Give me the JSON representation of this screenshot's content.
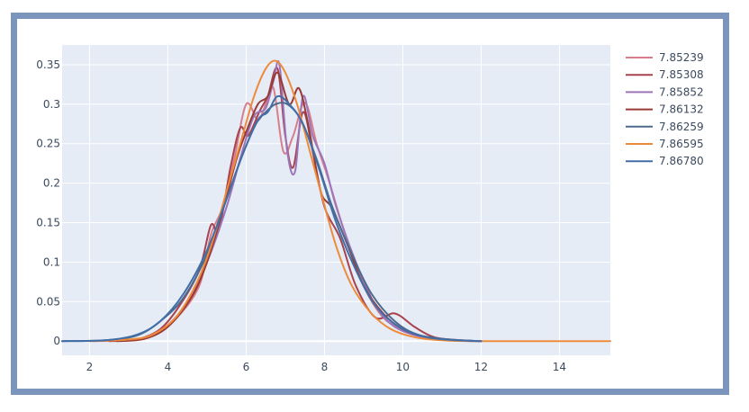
{
  "chart_data": {
    "type": "line",
    "title": "",
    "xlabel": "",
    "ylabel": "",
    "xlim": [
      1.3,
      15.3
    ],
    "ylim": [
      -0.018,
      0.375
    ],
    "xticks": [
      2,
      4,
      6,
      8,
      10,
      12,
      14
    ],
    "yticks": [
      0,
      0.05,
      0.1,
      0.15,
      0.2,
      0.25,
      0.3,
      0.35
    ],
    "ytick_labels": [
      "0",
      "0.05",
      "0.1",
      "0.15",
      "0.2",
      "0.25",
      "0.3",
      "0.35"
    ],
    "grid": true,
    "legend_position": "right",
    "series": [
      {
        "name": "7.85239",
        "color": "#d77e8d",
        "points": [
          [
            2.1,
            0
          ],
          [
            3.0,
            0.001
          ],
          [
            3.6,
            0.006
          ],
          [
            4.2,
            0.028
          ],
          [
            4.8,
            0.07
          ],
          [
            5.1,
            0.135
          ],
          [
            5.4,
            0.17
          ],
          [
            5.7,
            0.232
          ],
          [
            6.0,
            0.3
          ],
          [
            6.3,
            0.28
          ],
          [
            6.5,
            0.3
          ],
          [
            6.7,
            0.32
          ],
          [
            6.95,
            0.24
          ],
          [
            7.2,
            0.26
          ],
          [
            7.5,
            0.302
          ],
          [
            7.8,
            0.25
          ],
          [
            8.1,
            0.205
          ],
          [
            8.5,
            0.14
          ],
          [
            9.0,
            0.07
          ],
          [
            9.5,
            0.03
          ],
          [
            10.0,
            0.015
          ],
          [
            10.5,
            0.005
          ],
          [
            11.2,
            0.001
          ],
          [
            12.0,
            0
          ]
        ]
      },
      {
        "name": "7.85308",
        "color": "#a8424f",
        "points": [
          [
            2.5,
            0
          ],
          [
            3.2,
            0.002
          ],
          [
            3.8,
            0.015
          ],
          [
            4.3,
            0.045
          ],
          [
            4.8,
            0.09
          ],
          [
            5.1,
            0.147
          ],
          [
            5.3,
            0.14
          ],
          [
            5.6,
            0.22
          ],
          [
            5.85,
            0.27
          ],
          [
            6.05,
            0.26
          ],
          [
            6.35,
            0.292
          ],
          [
            6.55,
            0.31
          ],
          [
            6.8,
            0.345
          ],
          [
            7.0,
            0.26
          ],
          [
            7.2,
            0.22
          ],
          [
            7.45,
            0.29
          ],
          [
            7.7,
            0.24
          ],
          [
            8.0,
            0.17
          ],
          [
            8.4,
            0.13
          ],
          [
            8.8,
            0.07
          ],
          [
            9.3,
            0.03
          ],
          [
            9.8,
            0.035
          ],
          [
            10.3,
            0.018
          ],
          [
            10.8,
            0.005
          ],
          [
            11.5,
            0.001
          ],
          [
            12.0,
            0
          ]
        ]
      },
      {
        "name": "7.85852",
        "color": "#9d74b8",
        "points": [
          [
            2.8,
            0
          ],
          [
            3.5,
            0.005
          ],
          [
            4.0,
            0.02
          ],
          [
            4.5,
            0.05
          ],
          [
            5.0,
            0.1
          ],
          [
            5.5,
            0.17
          ],
          [
            5.9,
            0.24
          ],
          [
            6.2,
            0.285
          ],
          [
            6.5,
            0.295
          ],
          [
            6.7,
            0.33
          ],
          [
            6.85,
            0.35
          ],
          [
            7.05,
            0.24
          ],
          [
            7.25,
            0.215
          ],
          [
            7.45,
            0.31
          ],
          [
            7.7,
            0.26
          ],
          [
            8.0,
            0.225
          ],
          [
            8.3,
            0.17
          ],
          [
            8.8,
            0.1
          ],
          [
            9.3,
            0.045
          ],
          [
            9.8,
            0.018
          ],
          [
            10.5,
            0.005
          ],
          [
            11.2,
            0.001
          ],
          [
            11.8,
            0
          ]
        ]
      },
      {
        "name": "7.86132",
        "color": "#9a3a34",
        "points": [
          [
            2.7,
            0
          ],
          [
            3.4,
            0.003
          ],
          [
            4.0,
            0.018
          ],
          [
            4.6,
            0.055
          ],
          [
            5.0,
            0.1
          ],
          [
            5.4,
            0.165
          ],
          [
            5.75,
            0.23
          ],
          [
            6.0,
            0.265
          ],
          [
            6.3,
            0.3
          ],
          [
            6.55,
            0.31
          ],
          [
            6.8,
            0.34
          ],
          [
            7.1,
            0.3
          ],
          [
            7.35,
            0.32
          ],
          [
            7.6,
            0.27
          ],
          [
            7.9,
            0.19
          ],
          [
            8.2,
            0.168
          ],
          [
            8.6,
            0.12
          ],
          [
            9.0,
            0.07
          ],
          [
            9.5,
            0.035
          ],
          [
            10.0,
            0.015
          ],
          [
            10.6,
            0.005
          ],
          [
            11.3,
            0.001
          ],
          [
            12.0,
            0
          ]
        ]
      },
      {
        "name": "7.86259",
        "color": "#4d6a8d",
        "points": [
          [
            1.3,
            0
          ],
          [
            2.4,
            0.001
          ],
          [
            3.2,
            0.007
          ],
          [
            3.8,
            0.025
          ],
          [
            4.4,
            0.055
          ],
          [
            5.0,
            0.11
          ],
          [
            5.5,
            0.18
          ],
          [
            5.9,
            0.235
          ],
          [
            6.25,
            0.275
          ],
          [
            6.5,
            0.29
          ],
          [
            6.75,
            0.3
          ],
          [
            7.05,
            0.3
          ],
          [
            7.4,
            0.28
          ],
          [
            7.8,
            0.23
          ],
          [
            8.2,
            0.17
          ],
          [
            8.7,
            0.11
          ],
          [
            9.2,
            0.06
          ],
          [
            9.8,
            0.025
          ],
          [
            10.4,
            0.008
          ],
          [
            11.2,
            0.002
          ],
          [
            12.0,
            0
          ]
        ]
      },
      {
        "name": "7.86595",
        "color": "#ee8b3a",
        "points": [
          [
            2.0,
            0
          ],
          [
            3.0,
            0.002
          ],
          [
            3.6,
            0.008
          ],
          [
            4.2,
            0.03
          ],
          [
            4.7,
            0.07
          ],
          [
            5.1,
            0.12
          ],
          [
            5.5,
            0.19
          ],
          [
            5.85,
            0.25
          ],
          [
            6.2,
            0.31
          ],
          [
            6.5,
            0.345
          ],
          [
            6.75,
            0.355
          ],
          [
            7.0,
            0.34
          ],
          [
            7.3,
            0.3
          ],
          [
            7.6,
            0.245
          ],
          [
            7.9,
            0.19
          ],
          [
            8.3,
            0.12
          ],
          [
            8.7,
            0.07
          ],
          [
            9.2,
            0.035
          ],
          [
            9.7,
            0.015
          ],
          [
            10.3,
            0.005
          ],
          [
            11.0,
            0.001
          ],
          [
            12.0,
            0
          ],
          [
            15.3,
            0
          ]
        ]
      },
      {
        "name": "7.86780",
        "color": "#426ea8",
        "points": [
          [
            1.3,
            0
          ],
          [
            2.4,
            0.001
          ],
          [
            3.2,
            0.008
          ],
          [
            3.8,
            0.025
          ],
          [
            4.4,
            0.06
          ],
          [
            5.0,
            0.115
          ],
          [
            5.5,
            0.18
          ],
          [
            5.9,
            0.235
          ],
          [
            6.3,
            0.28
          ],
          [
            6.55,
            0.29
          ],
          [
            6.8,
            0.31
          ],
          [
            7.1,
            0.3
          ],
          [
            7.45,
            0.275
          ],
          [
            7.85,
            0.22
          ],
          [
            8.3,
            0.15
          ],
          [
            8.8,
            0.09
          ],
          [
            9.3,
            0.045
          ],
          [
            9.9,
            0.018
          ],
          [
            10.6,
            0.005
          ],
          [
            11.4,
            0.001
          ],
          [
            12.0,
            0
          ]
        ]
      }
    ]
  }
}
